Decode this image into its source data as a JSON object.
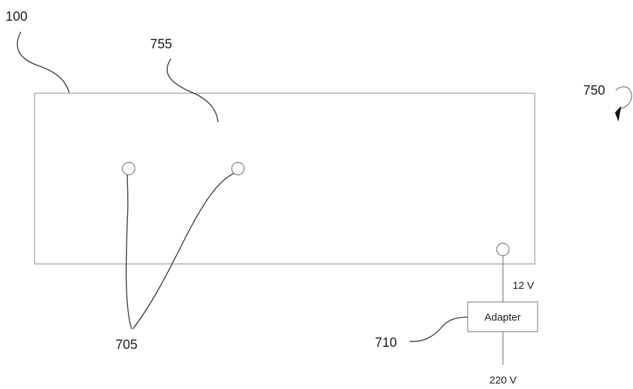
{
  "labels": {
    "device_ref": "100",
    "surface_ref": "755",
    "rotation_ref": "750",
    "ports_ref": "705",
    "adapter_ref": "710"
  },
  "adapter": {
    "name": "Adapter",
    "output_voltage": "12 V",
    "input_voltage": "220 V"
  }
}
